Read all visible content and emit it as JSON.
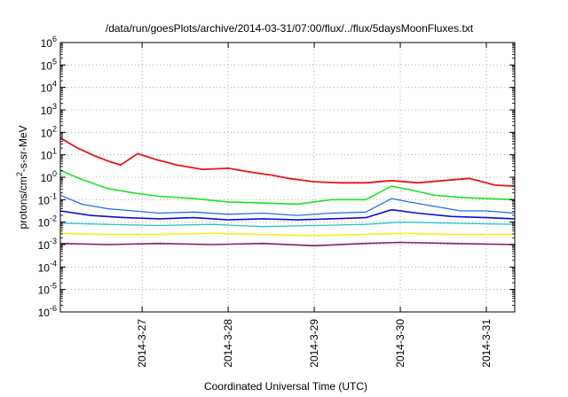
{
  "chart_data": {
    "type": "line",
    "title": "/data/run/goesPlots/archive/2014-03-31/07:00/flux/../flux/5daysMoonFluxes.txt",
    "xlabel": "Coordinated Universal Time (UTC)",
    "ylabel_parts": {
      "a": "protons/cm",
      "sup": "2",
      "b": "-s-sr-MeV"
    },
    "yscale": "log",
    "ylim": [
      1e-06,
      1000000.0
    ],
    "xlim_days": [
      26.05,
      31.33
    ],
    "x_ticks": [
      {
        "label": "2014-3-27",
        "day": 27
      },
      {
        "label": "2014-3-28",
        "day": 28
      },
      {
        "label": "2014-3-29",
        "day": 29
      },
      {
        "label": "2014-3-30",
        "day": 30
      },
      {
        "label": "2014-3-31",
        "day": 31
      }
    ],
    "y_ticks": [
      {
        "base": "10",
        "exp": "6",
        "value": 6
      },
      {
        "base": "10",
        "exp": "5",
        "value": 5
      },
      {
        "base": "10",
        "exp": "4",
        "value": 4
      },
      {
        "base": "10",
        "exp": "3",
        "value": 3
      },
      {
        "base": "10",
        "exp": "2",
        "value": 2
      },
      {
        "base": "10",
        "exp": "1",
        "value": 1
      },
      {
        "base": "10",
        "exp": "0",
        "value": 0
      },
      {
        "base": "10",
        "exp": "-1",
        "value": -1
      },
      {
        "base": "10",
        "exp": "-2",
        "value": -2
      },
      {
        "base": "10",
        "exp": "-3",
        "value": -3
      },
      {
        "base": "10",
        "exp": "-4",
        "value": -4
      },
      {
        "base": "10",
        "exp": "-5",
        "value": -5
      },
      {
        "base": "10",
        "exp": "-6",
        "value": -6
      }
    ],
    "grid": true,
    "series": [
      {
        "color": "#e8141b",
        "width": 1.8,
        "x": [
          26.05,
          26.25,
          26.45,
          26.62,
          26.75,
          26.95,
          27.15,
          27.4,
          27.7,
          28.0,
          28.3,
          28.5,
          28.7,
          29.0,
          29.3,
          29.6,
          29.9,
          30.2,
          30.5,
          30.8,
          31.1,
          31.33
        ],
        "log10y": [
          1.75,
          1.3,
          0.95,
          0.7,
          0.55,
          1.05,
          0.8,
          0.55,
          0.35,
          0.4,
          0.2,
          0.1,
          -0.05,
          -0.2,
          -0.25,
          -0.25,
          -0.15,
          -0.25,
          -0.15,
          -0.05,
          -0.35,
          -0.4
        ]
      },
      {
        "color": "#1ee31e",
        "width": 1.6,
        "x": [
          26.05,
          26.3,
          26.6,
          26.9,
          27.2,
          27.6,
          28.0,
          28.4,
          28.8,
          29.2,
          29.6,
          29.9,
          30.1,
          30.4,
          30.7,
          31.0,
          31.33
        ],
        "log10y": [
          0.3,
          -0.1,
          -0.5,
          -0.7,
          -0.85,
          -0.95,
          -1.1,
          -1.15,
          -1.2,
          -1.0,
          -1.0,
          -0.4,
          -0.55,
          -0.8,
          -0.9,
          -0.95,
          -1.0
        ]
      },
      {
        "color": "#1e6ff0",
        "width": 1.3,
        "x": [
          26.05,
          26.3,
          26.6,
          26.9,
          27.2,
          27.6,
          28.0,
          28.4,
          28.8,
          29.2,
          29.6,
          29.9,
          30.1,
          30.4,
          30.7,
          31.0,
          31.33
        ],
        "log10y": [
          -0.8,
          -1.2,
          -1.4,
          -1.5,
          -1.6,
          -1.55,
          -1.65,
          -1.6,
          -1.7,
          -1.6,
          -1.55,
          -0.95,
          -1.1,
          -1.3,
          -1.5,
          -1.5,
          -1.6
        ]
      },
      {
        "color": "#0d0ed6",
        "width": 1.6,
        "x": [
          26.05,
          26.4,
          26.8,
          27.2,
          27.6,
          28.0,
          28.4,
          28.8,
          29.2,
          29.6,
          29.9,
          30.2,
          30.6,
          31.0,
          31.33
        ],
        "log10y": [
          -1.5,
          -1.7,
          -1.8,
          -1.85,
          -1.8,
          -1.9,
          -1.85,
          -1.9,
          -1.85,
          -1.8,
          -1.45,
          -1.6,
          -1.75,
          -1.8,
          -1.85
        ]
      },
      {
        "color": "#22c8c8",
        "width": 1.3,
        "x": [
          26.05,
          26.6,
          27.2,
          27.8,
          28.4,
          29.0,
          29.6,
          30.0,
          30.6,
          31.33
        ],
        "log10y": [
          -2.05,
          -2.1,
          -2.15,
          -2.1,
          -2.2,
          -2.15,
          -2.1,
          -2.0,
          -2.05,
          -2.1
        ]
      },
      {
        "color": "#f5ef22",
        "width": 1.6,
        "x": [
          26.05,
          26.6,
          27.2,
          27.8,
          28.4,
          29.0,
          29.6,
          30.0,
          30.6,
          31.33
        ],
        "log10y": [
          -2.5,
          -2.55,
          -2.55,
          -2.5,
          -2.55,
          -2.6,
          -2.55,
          -2.5,
          -2.55,
          -2.55
        ]
      },
      {
        "color": "#8b1a6b",
        "width": 1.6,
        "x": [
          26.05,
          26.6,
          27.2,
          27.8,
          28.4,
          29.0,
          29.6,
          30.0,
          30.6,
          31.33
        ],
        "log10y": [
          -2.95,
          -3.0,
          -2.95,
          -3.0,
          -2.95,
          -3.05,
          -2.95,
          -2.9,
          -2.95,
          -3.0
        ]
      }
    ]
  }
}
